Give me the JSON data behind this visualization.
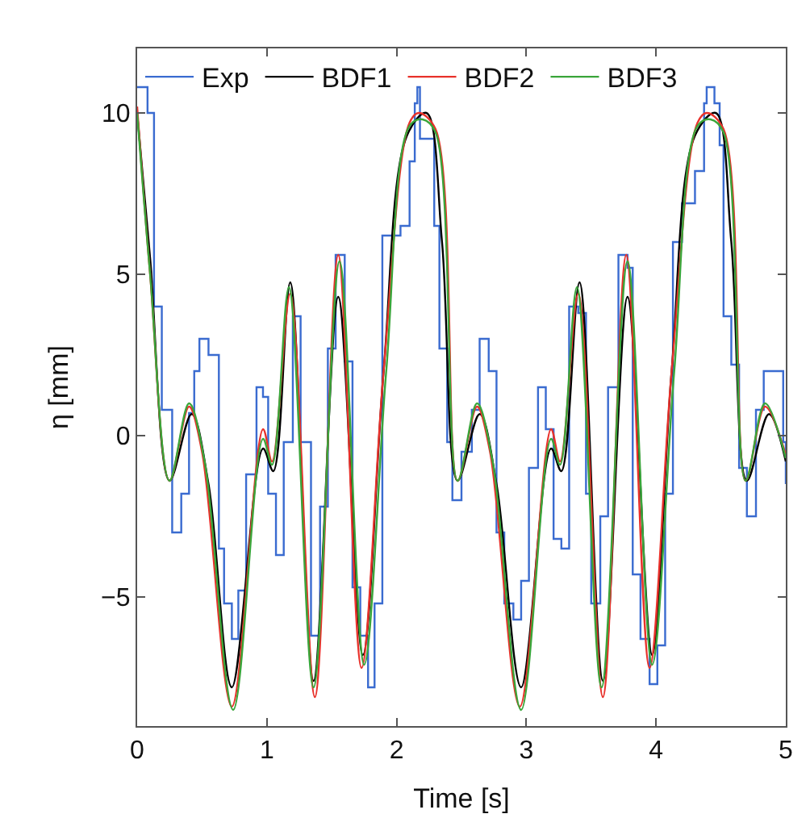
{
  "chart_data": {
    "type": "line",
    "xlabel": "Time [s]",
    "ylabel": "η [mm]",
    "xlim": [
      0,
      5
    ],
    "xticks": [
      0,
      1,
      2,
      3,
      4,
      5
    ],
    "ylim": [
      -9,
      12
    ],
    "yticks": [
      -5,
      0,
      5,
      10
    ],
    "legend": "top",
    "marker": "none",
    "line_style": "solid",
    "series": [
      {
        "name": "Exp",
        "type": "step",
        "color": "#3a6bd0",
        "x": [
          0,
          0.08,
          0.13,
          0.19,
          0.27,
          0.34,
          0.4,
          0.44,
          0.48,
          0.55,
          0.63,
          0.67,
          0.73,
          0.78,
          0.84,
          0.92,
          0.97,
          1.01,
          1.07,
          1.13,
          1.2,
          1.26,
          1.34,
          1.41,
          1.47,
          1.53,
          1.6,
          1.66,
          1.72,
          1.78,
          1.83,
          1.89,
          1.97,
          2.03,
          2.1,
          2.14,
          2.16,
          2.18,
          2.25,
          2.29,
          2.33,
          2.39,
          2.43,
          2.5,
          2.58,
          2.64,
          2.71,
          2.77,
          2.83,
          2.9,
          2.96,
          3.02,
          3.09,
          3.15,
          3.21,
          3.27,
          3.33,
          3.4,
          3.46,
          3.5,
          3.57,
          3.63,
          3.71,
          3.78,
          3.82,
          3.88,
          3.95,
          4.01,
          4.07,
          4.13,
          4.2,
          4.26,
          4.3,
          4.37,
          4.39,
          4.45,
          4.49,
          4.52,
          4.58,
          4.64,
          4.7,
          4.77,
          4.83,
          4.94,
          4.98,
          5.0
        ],
        "values": [
          10.8,
          10,
          4,
          0.8,
          -3,
          -1.8,
          0.7,
          2,
          3,
          2.5,
          -3.5,
          -5.2,
          -6.3,
          -4.8,
          -1.2,
          1.5,
          1.2,
          -1.8,
          -3.7,
          -0.2,
          3.7,
          -0.2,
          -6.2,
          -2.2,
          2.7,
          5.6,
          2.3,
          -4.7,
          -6.2,
          -7.8,
          -5.2,
          6.2,
          6.2,
          6.5,
          8.5,
          10.3,
          10.8,
          9.2,
          9.2,
          6.5,
          2.7,
          -0.2,
          -2,
          -0.5,
          0.8,
          3,
          2,
          -3,
          -5.2,
          -5.7,
          -4.5,
          -1,
          1.5,
          0.2,
          -3.2,
          -3.5,
          4,
          3.8,
          -1.8,
          -5.2,
          -2.5,
          1.5,
          5.6,
          5.2,
          -4.3,
          -6.3,
          -7.7,
          -6.5,
          -1.8,
          6,
          7.2,
          7.2,
          8.2,
          10.3,
          10.8,
          10.3,
          9,
          3.7,
          2.2,
          -1,
          -2.5,
          0.8,
          2,
          2,
          -0.2,
          -1.5
        ]
      },
      {
        "name": "BDF1",
        "color": "#000000",
        "x": [
          0,
          0.1,
          0.25,
          0.42,
          0.55,
          0.73,
          0.97,
          1.05,
          1.18,
          1.36,
          1.55,
          1.74,
          1.9,
          2.08,
          2.23,
          2.35,
          2.47,
          2.64,
          2.77,
          2.96,
          3.19,
          3.27,
          3.41,
          3.59,
          3.78,
          3.97,
          4.12,
          4.3,
          4.46,
          4.58,
          4.7,
          4.87,
          5.0
        ],
        "values": [
          10,
          5.5,
          -1.4,
          0.67,
          -1.5,
          -7.8,
          -0.4,
          -1.1,
          4.75,
          -7.6,
          4.3,
          -6.8,
          2,
          9.3,
          10,
          6,
          -1.4,
          0.67,
          -1.5,
          -7.8,
          -0.4,
          -1.1,
          4.75,
          -7.6,
          4.3,
          -6.8,
          2,
          9.3,
          10,
          6,
          -1.4,
          0.67,
          -0.8
        ]
      },
      {
        "name": "BDF2",
        "color": "#e8312a",
        "x": [
          0,
          0.1,
          0.25,
          0.4,
          0.5,
          0.73,
          0.97,
          1.04,
          1.18,
          1.37,
          1.55,
          1.73,
          1.9,
          2.1,
          2.17,
          2.3,
          2.47,
          2.62,
          2.72,
          2.95,
          3.19,
          3.26,
          3.4,
          3.59,
          3.77,
          3.95,
          4.12,
          4.32,
          4.39,
          4.52,
          4.69,
          4.84,
          5.0
        ],
        "values": [
          10.2,
          5,
          -1.4,
          0.9,
          -0.5,
          -8.4,
          0.2,
          -0.8,
          4.4,
          -8.1,
          5.6,
          -7.2,
          2,
          9.7,
          10,
          9.5,
          -1.4,
          0.9,
          -0.5,
          -8.4,
          0.2,
          -0.8,
          4.4,
          -8.1,
          5.6,
          -7.2,
          2,
          9.7,
          10,
          9.5,
          -1.4,
          0.9,
          -0.6
        ]
      },
      {
        "name": "BDF3",
        "color": "#3aa53a",
        "x": [
          0,
          0.1,
          0.25,
          0.4,
          0.52,
          0.74,
          0.97,
          1.04,
          1.17,
          1.36,
          1.56,
          1.75,
          1.92,
          2.1,
          2.2,
          2.3,
          2.47,
          2.62,
          2.74,
          2.96,
          3.19,
          3.26,
          3.39,
          3.58,
          3.78,
          3.97,
          4.14,
          4.32,
          4.42,
          4.52,
          4.69,
          4.84,
          5.0
        ],
        "values": [
          10,
          5,
          -1.4,
          1,
          -0.8,
          -8.5,
          -0.1,
          -0.9,
          4.6,
          -7.8,
          5.4,
          -7.1,
          2,
          9.6,
          9.8,
          9.4,
          -1.4,
          1,
          -0.8,
          -8.5,
          -0.1,
          -0.9,
          4.6,
          -7.8,
          5.4,
          -7.1,
          2,
          9.6,
          9.8,
          9.4,
          -1.4,
          1,
          -0.7
        ]
      }
    ]
  }
}
